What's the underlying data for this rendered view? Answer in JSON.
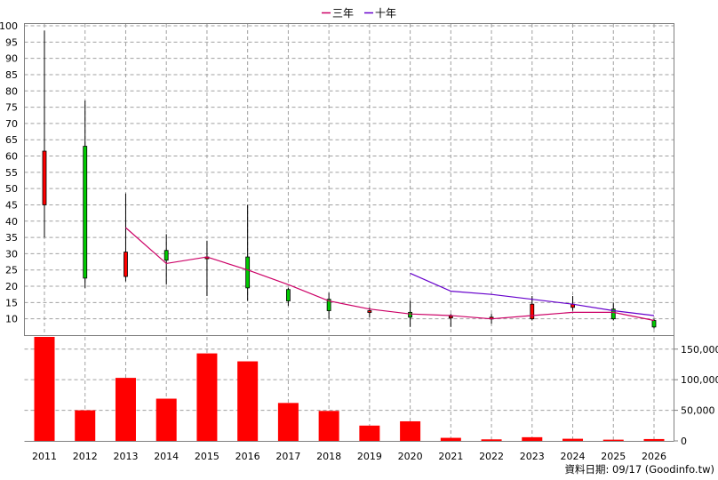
{
  "chart_data": [
    {
      "type": "candlestick",
      "x_categories": [
        "2011",
        "2012",
        "2013",
        "2014",
        "2015",
        "2016",
        "2017",
        "2018",
        "2019",
        "2020",
        "2021",
        "2022",
        "2023",
        "2024",
        "2025",
        "2026"
      ],
      "ylim": [
        5,
        100
      ],
      "y_ticks": [
        10,
        15,
        20,
        25,
        30,
        35,
        40,
        45,
        50,
        55,
        60,
        65,
        70,
        75,
        80,
        85,
        90,
        95,
        100
      ],
      "grid": true,
      "legend": {
        "position": "top-center",
        "items": [
          {
            "label": "三年",
            "color": "#cc0066"
          },
          {
            "label": "十年",
            "color": "#6600cc"
          }
        ]
      },
      "candles": [
        {
          "year": "2011",
          "open": 45,
          "close": 61.5,
          "high": 98.5,
          "low": 35,
          "color": "#ff0000"
        },
        {
          "year": "2012",
          "open": 63,
          "close": 22.5,
          "high": 77,
          "low": 19.5,
          "color": "#00cc00"
        },
        {
          "year": "2013",
          "open": 23,
          "close": 30.5,
          "high": 48.5,
          "low": 21.5,
          "color": "#ff0000"
        },
        {
          "year": "2014",
          "open": 31,
          "close": 28,
          "high": 36,
          "low": 20.5,
          "color": "#00cc00"
        },
        {
          "year": "2015",
          "open": 28.5,
          "close": 29,
          "high": 34,
          "low": 17,
          "color": "#ff0000"
        },
        {
          "year": "2016",
          "open": 29,
          "close": 19.5,
          "high": 45,
          "low": 15.5,
          "color": "#00cc00"
        },
        {
          "year": "2017",
          "open": 19,
          "close": 15.5,
          "high": 19.5,
          "low": 14,
          "color": "#00cc00"
        },
        {
          "year": "2018",
          "open": 16,
          "close": 12.5,
          "high": 18,
          "low": 10,
          "color": "#00cc00"
        },
        {
          "year": "2019",
          "open": 12,
          "close": 12.5,
          "high": 13.5,
          "low": 10.5,
          "color": "#ff0000"
        },
        {
          "year": "2020",
          "open": 12,
          "close": 10.5,
          "high": 15.5,
          "low": 7.5,
          "color": "#00cc00"
        },
        {
          "year": "2021",
          "open": 10.5,
          "close": 10.8,
          "high": 11.5,
          "low": 7.5,
          "color": "#ff0000"
        },
        {
          "year": "2022",
          "open": 10.2,
          "close": 10.5,
          "high": 11.5,
          "low": 8.5,
          "color": "#ff0000"
        },
        {
          "year": "2023",
          "open": 10,
          "close": 14.5,
          "high": 17,
          "low": 9.5,
          "color": "#ff0000"
        },
        {
          "year": "2024",
          "open": 13.5,
          "close": 14.5,
          "high": 17,
          "low": 12.5,
          "color": "#ff0000"
        },
        {
          "year": "2025",
          "open": 13,
          "close": 10,
          "high": 15,
          "low": 9.5,
          "color": "#00cc00"
        },
        {
          "year": "2026",
          "open": 9.5,
          "close": 7.5,
          "high": 10,
          "low": 7,
          "color": "#00cc00"
        }
      ],
      "series": [
        {
          "name": "三年",
          "color": "#cc0066",
          "x": [
            "2013",
            "2014",
            "2015",
            "2016",
            "2017",
            "2018",
            "2019",
            "2020",
            "2021",
            "2022",
            "2023",
            "2024",
            "2025",
            "2026"
          ],
          "values": [
            38,
            27,
            29,
            25,
            20.5,
            15.5,
            13,
            11.5,
            11,
            10,
            11,
            12,
            12,
            9.5
          ]
        },
        {
          "name": "十年",
          "color": "#6600cc",
          "x": [
            "2020",
            "2021",
            "2022",
            "2023",
            "2024",
            "2025",
            "2026"
          ],
          "values": [
            24,
            18.5,
            17.5,
            16,
            14.5,
            12.5,
            11
          ]
        }
      ]
    },
    {
      "type": "bar",
      "categories": [
        "2011",
        "2012",
        "2013",
        "2014",
        "2015",
        "2016",
        "2017",
        "2018",
        "2019",
        "2020",
        "2021",
        "2022",
        "2023",
        "2024",
        "2025",
        "2026"
      ],
      "values": [
        170000,
        50000,
        103000,
        69000,
        143000,
        130000,
        62000,
        49000,
        25000,
        32000,
        5000,
        2500,
        6000,
        3500,
        2000,
        3000
      ],
      "ylim": [
        0,
        170000
      ],
      "y_ticks": [
        0,
        50000,
        100000,
        150000
      ],
      "y_tick_labels": [
        "0",
        "50,000",
        "100,000",
        "150,000"
      ],
      "color": "#ff0000",
      "grid": true
    }
  ],
  "footer": {
    "text": "資料日期: 09/17  (Goodinfo.tw)"
  }
}
